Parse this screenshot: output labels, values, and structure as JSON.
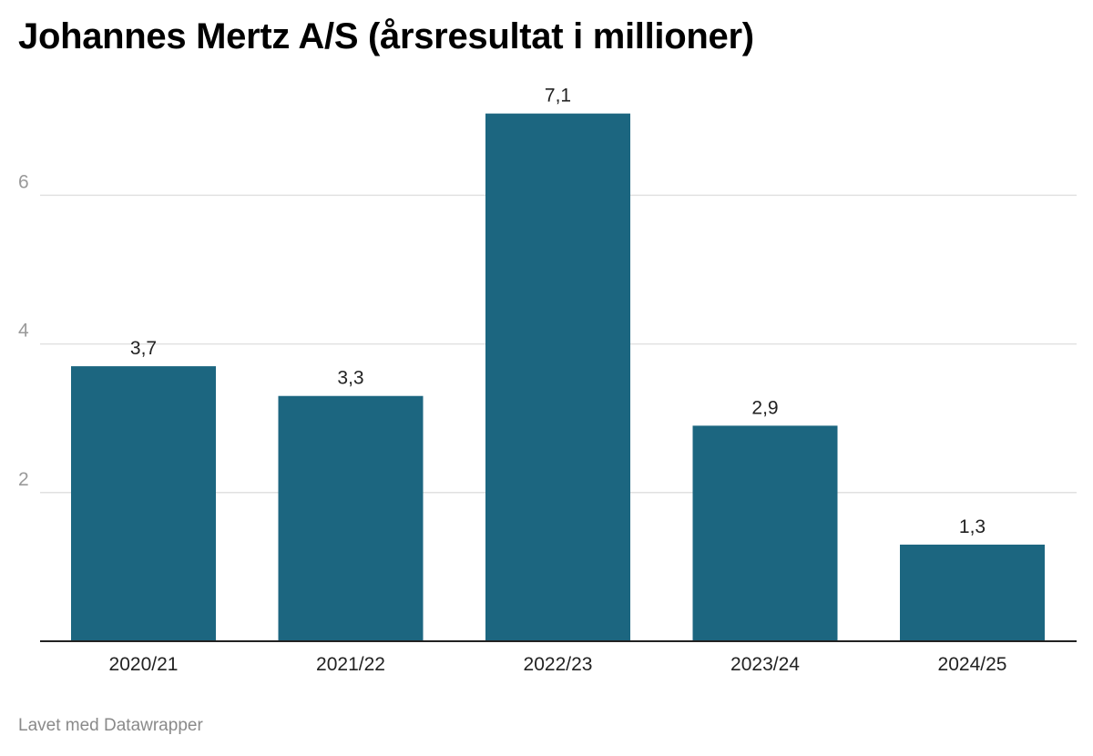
{
  "chart_data": {
    "type": "bar",
    "title": "Johannes Mertz A/S (årsresultat i millioner)",
    "categories": [
      "2020/21",
      "2021/22",
      "2022/23",
      "2023/24",
      "2024/25"
    ],
    "values": [
      3.7,
      3.3,
      7.1,
      2.9,
      1.3
    ],
    "value_labels": [
      "3,7",
      "3,3",
      "7,1",
      "2,9",
      "1,3"
    ],
    "y_ticks": [
      2,
      4,
      6
    ],
    "ylim": [
      0,
      7.1
    ],
    "xlabel": "",
    "ylabel": "",
    "grid": true,
    "bar_color": "#1c6680",
    "source": "Lavet med Datawrapper"
  }
}
